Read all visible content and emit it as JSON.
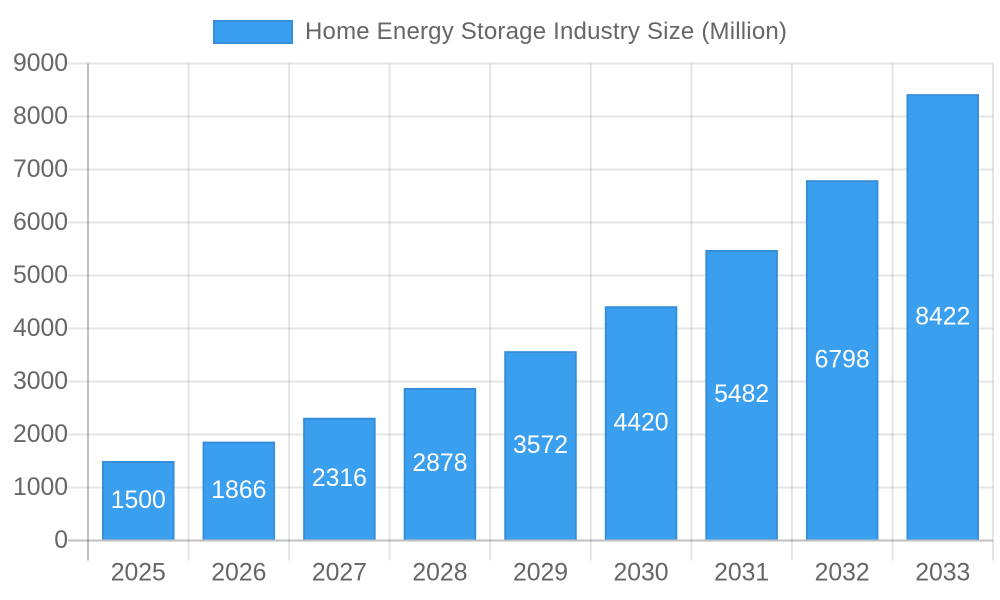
{
  "chart_data": {
    "type": "bar",
    "title": "Home Energy Storage Industry Size (Million)",
    "categories": [
      "2025",
      "2026",
      "2027",
      "2028",
      "2029",
      "2030",
      "2031",
      "2032",
      "2033"
    ],
    "series": [
      {
        "name": "Home Energy Storage Industry Size (Million)",
        "values": [
          1500,
          1866,
          2316,
          2878,
          3572,
          4420,
          5482,
          6798,
          8422
        ]
      }
    ],
    "value_labels": [
      "1500",
      "1866",
      "2316",
      "2878",
      "3572",
      "4420",
      "5482",
      "6798",
      "8422"
    ],
    "xlabel": "",
    "ylabel": "",
    "ylim": [
      0,
      9000
    ],
    "yticks": [
      0,
      1000,
      2000,
      3000,
      4000,
      5000,
      6000,
      7000,
      8000,
      9000
    ],
    "grid": true,
    "legend_position": "top",
    "colors": {
      "bar": "#3b9ff0",
      "grid_line": "rgba(0,0,0,0.1)",
      "bar_border": "rgba(0,0,0,0.1)",
      "zero_line": "rgba(0,0,0,0.25)",
      "axis_label": "#666666",
      "legend_text": "#666666",
      "value_label": "#ffffff",
      "background": "#ffffff"
    }
  }
}
